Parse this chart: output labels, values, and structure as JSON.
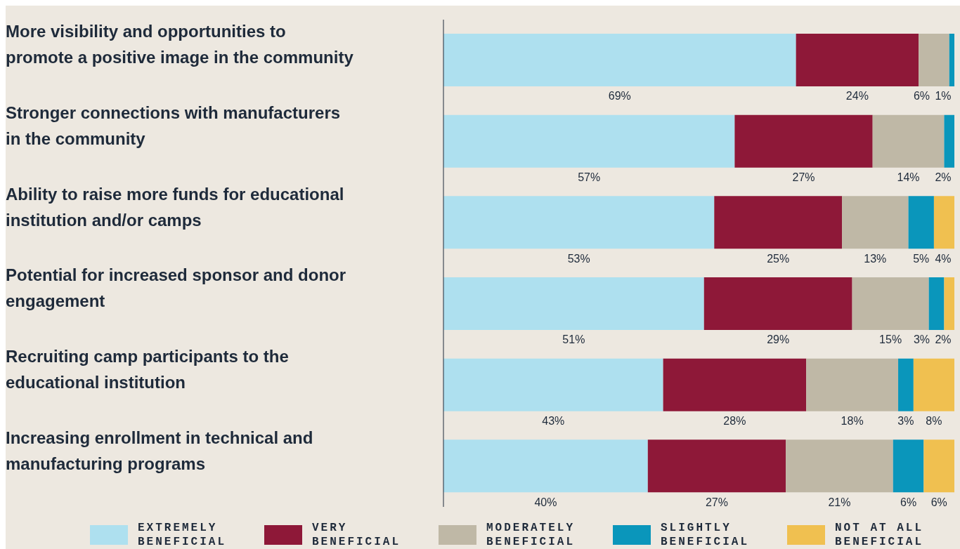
{
  "chart_data": {
    "type": "bar",
    "orientation": "horizontal",
    "stacked": true,
    "categories": [
      "More visibility and opportunities to promote a positive image in the community",
      "Stronger connections with manufacturers in the community",
      "Ability to raise more funds for educational institution and/or camps",
      "Potential for increased sponsor and donor engagement",
      "Recruiting camp participants to the educational institution",
      "Increasing enrollment in technical and manufacturing programs"
    ],
    "series": [
      {
        "name": "EXTREMELY BENEFICIAL",
        "color": "#aee0ef",
        "values": [
          69,
          57,
          53,
          51,
          43,
          40
        ],
        "value_labels": [
          "69%",
          "57%",
          "53%",
          "51%",
          "43%",
          "40%"
        ]
      },
      {
        "name": "VERY BENEFICIAL",
        "color": "#8e1838",
        "values": [
          24,
          27,
          25,
          29,
          28,
          27
        ],
        "value_labels": [
          "24%",
          "27%",
          "25%",
          "29%",
          "28%",
          "27%"
        ]
      },
      {
        "name": "MODERATELY BENEFICIAL",
        "color": "#bfb8a6",
        "values": [
          6,
          14,
          13,
          15,
          18,
          21
        ],
        "value_labels": [
          "6%",
          "14%",
          "13%",
          "15%",
          "18%",
          "21%"
        ]
      },
      {
        "name": "SLIGHTLY BENEFICIAL",
        "color": "#0a96bb",
        "values": [
          1,
          2,
          5,
          3,
          3,
          6
        ],
        "value_labels": [
          "1%",
          "2%",
          "5%",
          "3%",
          "3%",
          "6%"
        ]
      },
      {
        "name": "NOT AT ALL BENEFICIAL",
        "color": "#f0c050",
        "values": [
          null,
          null,
          4,
          2,
          8,
          6
        ],
        "value_labels": [
          null,
          null,
          "4%",
          "2%",
          "8%",
          "6%"
        ]
      }
    ],
    "tick_labels": "y",
    "legend": "bottom",
    "grid": false
  }
}
